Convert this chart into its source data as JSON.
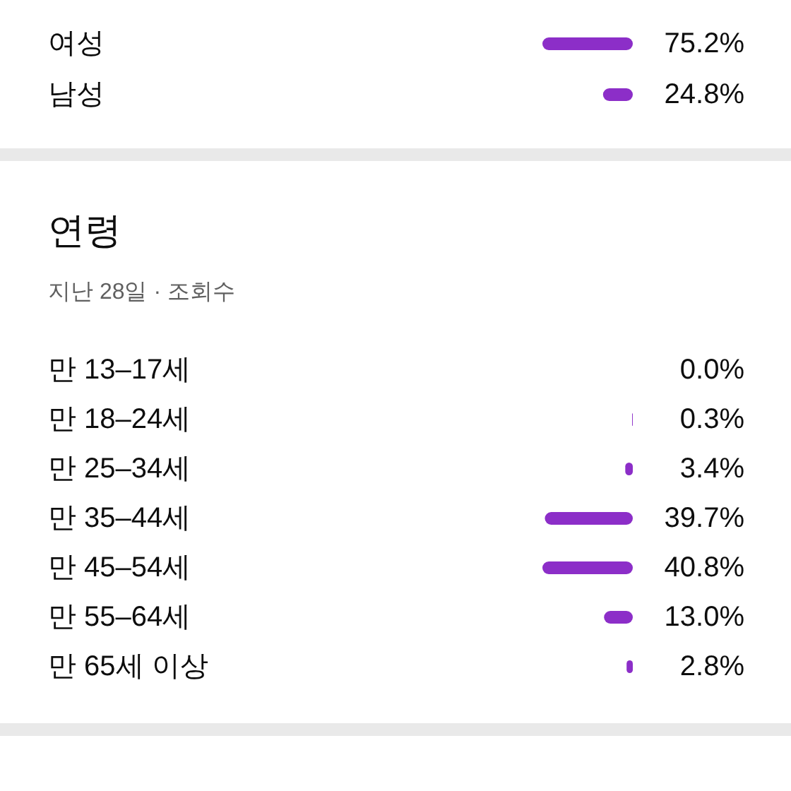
{
  "chart_data": [
    {
      "type": "bar",
      "orientation": "horizontal",
      "categories": [
        "여성",
        "남성"
      ],
      "values": [
        75.2,
        24.8
      ],
      "color": "#8c2ec8",
      "value_labels": [
        "75.2%",
        "24.8%"
      ]
    },
    {
      "type": "bar",
      "orientation": "horizontal",
      "title": "연령",
      "subtitle": "지난 28일 · 조회수",
      "categories": [
        "만 13–17세",
        "만 18–24세",
        "만 25–34세",
        "만 35–44세",
        "만 45–54세",
        "만 55–64세",
        "만 65세 이상"
      ],
      "values": [
        0.0,
        0.3,
        3.4,
        39.7,
        40.8,
        13.0,
        2.8
      ],
      "color": "#8c2ec8",
      "value_labels": [
        "0.0%",
        "0.3%",
        "3.4%",
        "39.7%",
        "40.8%",
        "13.0%",
        "2.8%"
      ]
    }
  ]
}
